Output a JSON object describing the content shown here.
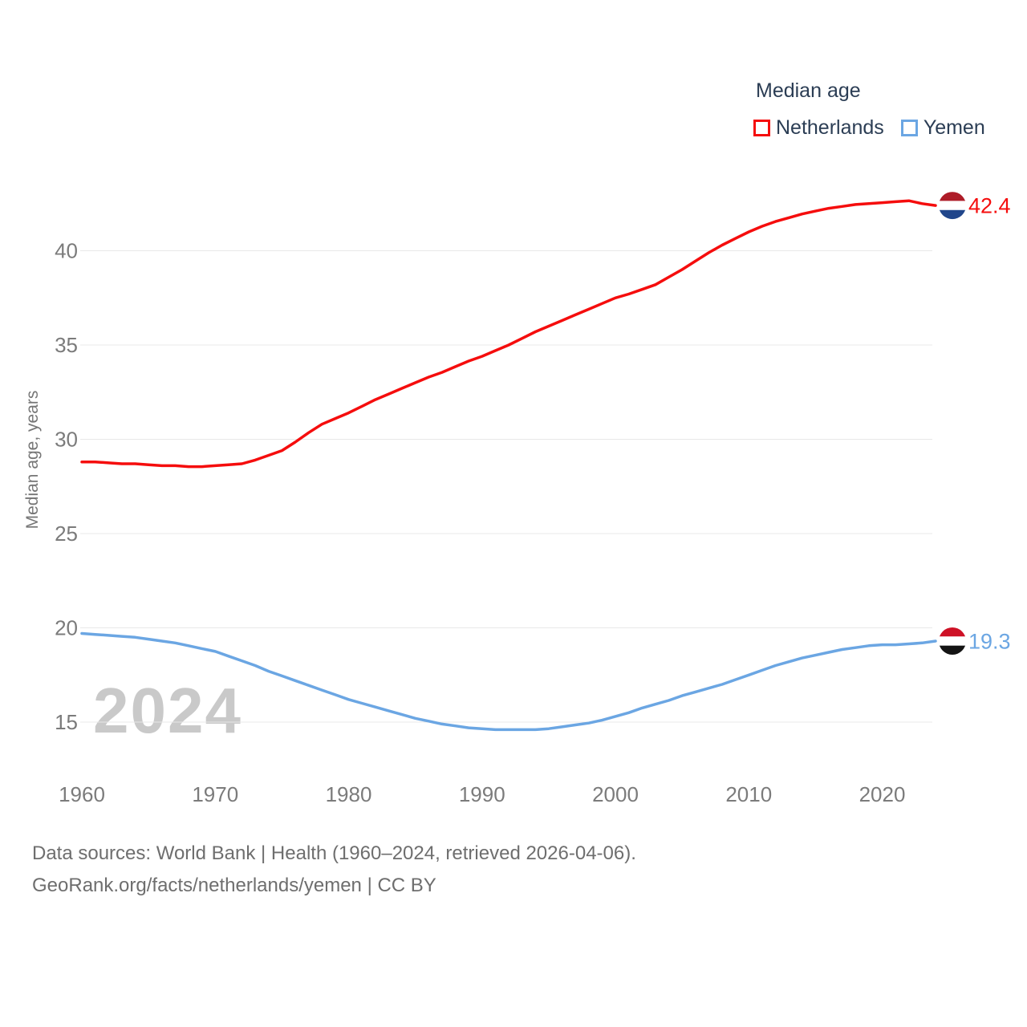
{
  "legend": {
    "title": "Median age",
    "items": [
      {
        "label": "Netherlands",
        "color": "#f50d0d"
      },
      {
        "label": "Yemen",
        "color": "#6ba6e3"
      }
    ]
  },
  "watermark": "2024",
  "end_labels": [
    {
      "series": "Netherlands",
      "value": "42.4"
    },
    {
      "series": "Yemen",
      "value": "19.3"
    }
  ],
  "flags": {
    "netherlands": [
      "#AE1C28",
      "#FFFFFF",
      "#21468B"
    ],
    "yemen": [
      "#CE1126",
      "#FFFFFF",
      "#141414"
    ]
  },
  "footer": {
    "line1": "Data sources: World Bank | Health (1960–2024, retrieved 2026-04-06).",
    "line2": "GeoRank.org/facts/netherlands/yemen | CC BY"
  },
  "chart_data": {
    "type": "line",
    "title": "Median age",
    "xlabel": "",
    "ylabel": "Median age, years",
    "legend_position": "top-right",
    "grid": true,
    "xlim": [
      1960,
      2024
    ],
    "ylim": [
      13.5,
      44
    ],
    "x_ticks": [
      1960,
      1970,
      1980,
      1990,
      2000,
      2010,
      2020
    ],
    "y_ticks": [
      15,
      20,
      25,
      30,
      35,
      40
    ],
    "x": [
      1960,
      1961,
      1962,
      1963,
      1964,
      1965,
      1966,
      1967,
      1968,
      1969,
      1970,
      1971,
      1972,
      1973,
      1974,
      1975,
      1976,
      1977,
      1978,
      1979,
      1980,
      1981,
      1982,
      1983,
      1984,
      1985,
      1986,
      1987,
      1988,
      1989,
      1990,
      1991,
      1992,
      1993,
      1994,
      1995,
      1996,
      1997,
      1998,
      1999,
      2000,
      2001,
      2002,
      2003,
      2004,
      2005,
      2006,
      2007,
      2008,
      2009,
      2010,
      2011,
      2012,
      2013,
      2014,
      2015,
      2016,
      2017,
      2018,
      2019,
      2020,
      2021,
      2022,
      2023,
      2024
    ],
    "series": [
      {
        "name": "Netherlands",
        "color": "#f50d0d",
        "end_value": 42.4,
        "values": [
          28.8,
          28.8,
          28.75,
          28.7,
          28.7,
          28.65,
          28.6,
          28.6,
          28.55,
          28.55,
          28.6,
          28.65,
          28.7,
          28.9,
          29.15,
          29.4,
          29.85,
          30.35,
          30.8,
          31.1,
          31.4,
          31.75,
          32.1,
          32.4,
          32.7,
          33.0,
          33.3,
          33.55,
          33.85,
          34.15,
          34.4,
          34.7,
          35.0,
          35.35,
          35.7,
          36.0,
          36.3,
          36.6,
          36.9,
          37.2,
          37.5,
          37.7,
          37.95,
          38.2,
          38.6,
          39.0,
          39.45,
          39.9,
          40.3,
          40.65,
          41.0,
          41.3,
          41.55,
          41.75,
          41.95,
          42.1,
          42.25,
          42.35,
          42.45,
          42.5,
          42.55,
          42.6,
          42.65,
          42.5,
          42.4
        ]
      },
      {
        "name": "Yemen",
        "color": "#6ba6e3",
        "end_value": 19.3,
        "values": [
          19.7,
          19.65,
          19.6,
          19.55,
          19.5,
          19.4,
          19.3,
          19.2,
          19.05,
          18.9,
          18.75,
          18.5,
          18.25,
          18.0,
          17.7,
          17.45,
          17.2,
          16.95,
          16.7,
          16.45,
          16.2,
          16.0,
          15.8,
          15.6,
          15.4,
          15.2,
          15.05,
          14.9,
          14.8,
          14.7,
          14.65,
          14.6,
          14.6,
          14.6,
          14.6,
          14.65,
          14.75,
          14.85,
          14.95,
          15.1,
          15.3,
          15.5,
          15.75,
          15.95,
          16.15,
          16.4,
          16.6,
          16.8,
          17.0,
          17.25,
          17.5,
          17.75,
          18.0,
          18.2,
          18.4,
          18.55,
          18.7,
          18.85,
          18.95,
          19.05,
          19.1,
          19.1,
          19.15,
          19.2,
          19.3
        ]
      }
    ]
  }
}
